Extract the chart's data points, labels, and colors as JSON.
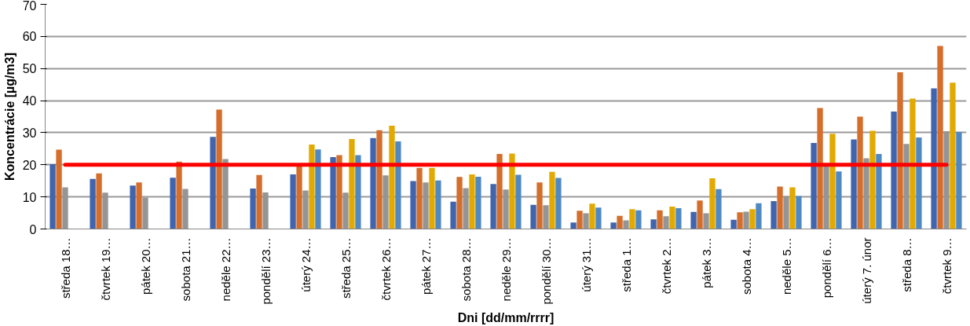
{
  "chart_data": {
    "type": "bar",
    "xlabel": "Dni [dd/mm/rrrr]",
    "ylabel": "Koncentrácie [µg/m3]",
    "categories": [
      "středa 18…",
      "čtvrtek 19…",
      "pátek 20…",
      "sobota 21…",
      "neděle 22…",
      "pondělí 23…",
      "úterý 24…",
      "středa 25…",
      "čtvrtek 26…",
      "pátek 27…",
      "sobota 28…",
      "neděle 29…",
      "pondělí 30…",
      "úterý 31…",
      "středa 1…",
      "čtvrtek 2…",
      "pátek 3…",
      "sobota 4…",
      "neděle 5…",
      "pondělí 6…",
      "úterý 7. únor",
      "středa 8…",
      "čtvrtek 9…"
    ],
    "series": [
      {
        "color": "#4064ad",
        "values": [
          20.2,
          15.6,
          13.5,
          16,
          28.7,
          12.6,
          17,
          22.4,
          28.3,
          14.9,
          8.5,
          14,
          7.5,
          2,
          2,
          3,
          5.3,
          2.9,
          8.7,
          26.8,
          27.9,
          36.6,
          43.8
        ]
      },
      {
        "color": "#d56d2b",
        "values": [
          24.7,
          17.3,
          14.5,
          21,
          37.2,
          16.8,
          19.5,
          23,
          30.8,
          19,
          16.2,
          23.4,
          14.5,
          5.7,
          4.1,
          5.8,
          8.9,
          5.2,
          13.2,
          37.7,
          35,
          48.8,
          57
        ]
      },
      {
        "color": "#959595",
        "values": [
          13,
          11.3,
          9.8,
          12.5,
          21.8,
          11.4,
          12,
          11.3,
          16.7,
          14.5,
          12.7,
          12.3,
          7.4,
          4.9,
          2.7,
          4,
          4.9,
          5.4,
          10.3,
          19.5,
          22,
          26.5,
          30.5
        ]
      },
      {
        "color": "#e2aa00",
        "values": [
          null,
          null,
          null,
          null,
          null,
          null,
          26.3,
          28,
          32.2,
          19,
          17,
          23.5,
          17.8,
          7.9,
          6.2,
          7,
          15.8,
          6.2,
          13,
          29.7,
          30.6,
          40.6,
          45.6
        ]
      },
      {
        "color": "#5089c2",
        "values": [
          null,
          null,
          null,
          null,
          null,
          null,
          24.8,
          23,
          27.3,
          15.1,
          16.3,
          16.9,
          15.9,
          6.7,
          5.8,
          6.5,
          12.4,
          8,
          10.3,
          17.9,
          23.4,
          28.5,
          30.2
        ]
      },
      {
        "type": "line",
        "color": "#ff0000",
        "values": [
          20,
          20,
          20,
          20,
          20,
          20,
          20,
          20,
          20,
          20,
          20,
          20,
          20,
          20,
          20,
          20,
          20,
          20,
          20,
          20,
          20,
          20,
          20
        ]
      }
    ],
    "ylim": [
      0,
      70
    ],
    "yticks": [
      0,
      10,
      20,
      30,
      40,
      50,
      60,
      70
    ],
    "grid": "y"
  }
}
